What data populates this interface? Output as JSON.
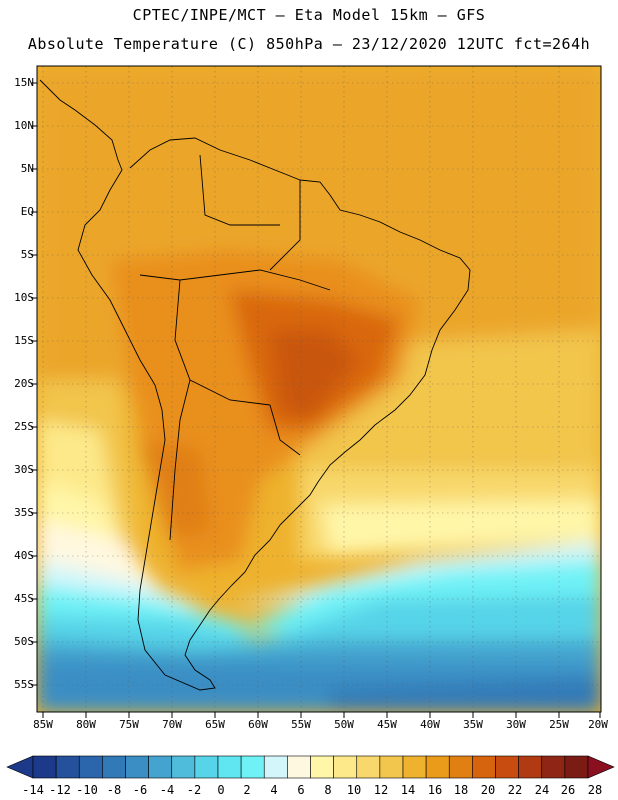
{
  "header": {
    "line1": "CPTEC/INPE/MCT —  Eta Model 15km — GFS",
    "line2": "Absolute Temperature (C) 850hPa — 23/12/2020 12UTC fct=264h"
  },
  "axes": {
    "lat_labels": [
      "15N",
      "10N",
      "5N",
      "EQ",
      "5S",
      "10S",
      "15S",
      "20S",
      "25S",
      "30S",
      "35S",
      "40S",
      "45S",
      "50S",
      "55S"
    ],
    "lon_labels": [
      "85W",
      "80W",
      "75W",
      "70W",
      "65W",
      "60W",
      "55W",
      "50W",
      "45W",
      "40W",
      "35W",
      "30W",
      "25W",
      "20W"
    ]
  },
  "colorbar": {
    "labels": [
      "-14",
      "-12",
      "-10",
      "-8",
      "-6",
      "-4",
      "-2",
      "0",
      "2",
      "4",
      "6",
      "8",
      "10",
      "12",
      "14",
      "16",
      "18",
      "20",
      "22",
      "24",
      "26",
      "28"
    ],
    "colors": [
      "#1d3a8a",
      "#24509c",
      "#2b66ad",
      "#3279b8",
      "#3a8ec4",
      "#44a4cf",
      "#4fbcdb",
      "#57d4e8",
      "#5fe6f0",
      "#6ff2f6",
      "#d3f6fb",
      "#fff8e0",
      "#fff6a8",
      "#fde98a",
      "#f8d86c",
      "#f2c54c",
      "#eeb22e",
      "#eb9b1a",
      "#e07f12",
      "#d6640f",
      "#c84c10",
      "#b03a12",
      "#8f2615",
      "#7a1b14"
    ]
  }
}
